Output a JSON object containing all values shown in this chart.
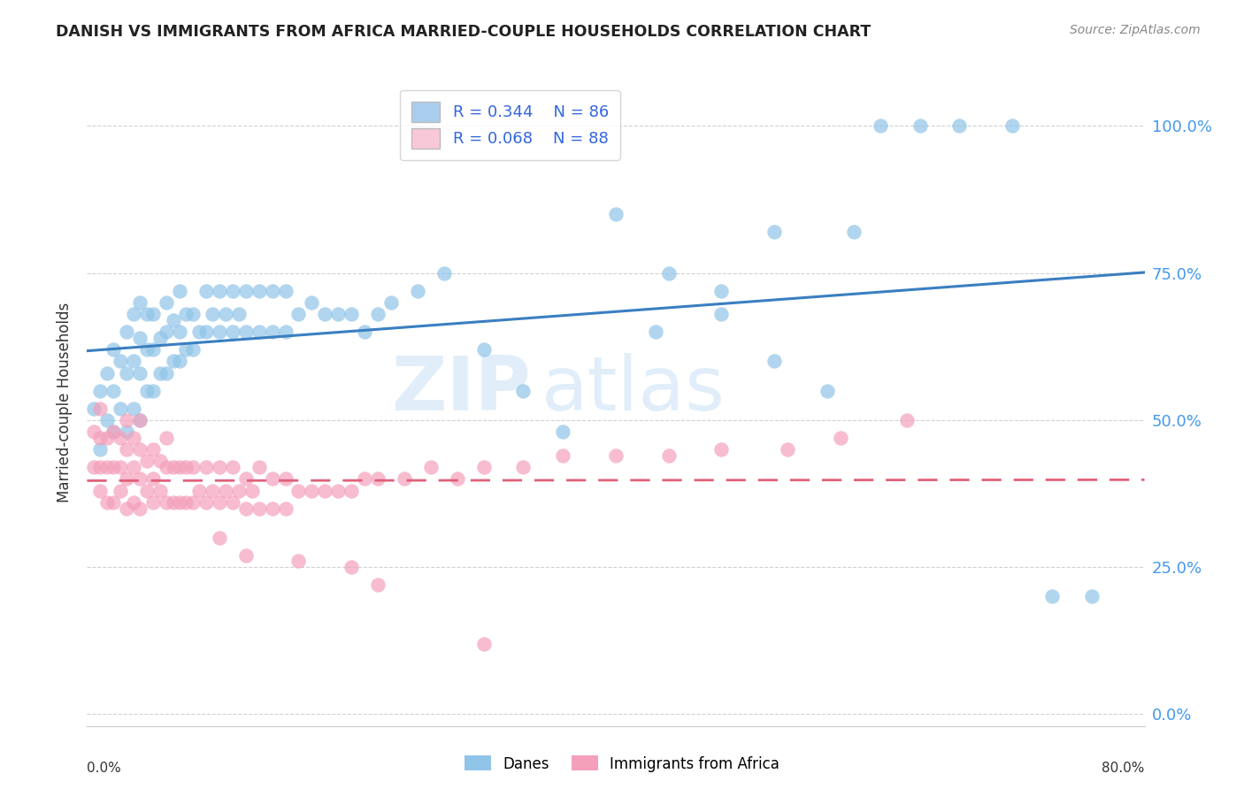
{
  "title": "DANISH VS IMMIGRANTS FROM AFRICA MARRIED-COUPLE HOUSEHOLDS CORRELATION CHART",
  "source": "Source: ZipAtlas.com",
  "ylabel": "Married-couple Households",
  "ytick_labels": [
    "0.0%",
    "25.0%",
    "50.0%",
    "75.0%",
    "100.0%"
  ],
  "ytick_values": [
    0.0,
    0.25,
    0.5,
    0.75,
    1.0
  ],
  "xmin": 0.0,
  "xmax": 0.8,
  "ymin": -0.02,
  "ymax": 1.08,
  "danes_R": 0.344,
  "danes_N": 86,
  "immigrants_R": 0.068,
  "immigrants_N": 88,
  "danes_color": "#90c4e8",
  "danes_line_color": "#3a7fc1",
  "immigrants_color": "#f4a0bb",
  "immigrants_line_color": "#e0607a",
  "legend_blue_fill": "#aacfee",
  "legend_pink_fill": "#f8c8d8",
  "watermark_zip": "ZIP",
  "watermark_atlas": "atlas",
  "danes_x": [
    0.005,
    0.01,
    0.01,
    0.015,
    0.015,
    0.02,
    0.02,
    0.02,
    0.025,
    0.025,
    0.03,
    0.03,
    0.03,
    0.035,
    0.035,
    0.035,
    0.04,
    0.04,
    0.04,
    0.04,
    0.045,
    0.045,
    0.045,
    0.05,
    0.05,
    0.05,
    0.055,
    0.055,
    0.06,
    0.06,
    0.06,
    0.065,
    0.065,
    0.07,
    0.07,
    0.07,
    0.075,
    0.075,
    0.08,
    0.08,
    0.085,
    0.09,
    0.09,
    0.095,
    0.1,
    0.1,
    0.105,
    0.11,
    0.11,
    0.115,
    0.12,
    0.12,
    0.13,
    0.13,
    0.14,
    0.14,
    0.15,
    0.15,
    0.16,
    0.17,
    0.18,
    0.19,
    0.2,
    0.21,
    0.22,
    0.23,
    0.25,
    0.27,
    0.3,
    0.33,
    0.36,
    0.4,
    0.44,
    0.48,
    0.52,
    0.56,
    0.6,
    0.63,
    0.66,
    0.7,
    0.73,
    0.76,
    0.43,
    0.48,
    0.52,
    0.58
  ],
  "danes_y": [
    0.52,
    0.45,
    0.55,
    0.5,
    0.58,
    0.48,
    0.55,
    0.62,
    0.52,
    0.6,
    0.48,
    0.58,
    0.65,
    0.52,
    0.6,
    0.68,
    0.5,
    0.58,
    0.64,
    0.7,
    0.55,
    0.62,
    0.68,
    0.55,
    0.62,
    0.68,
    0.58,
    0.64,
    0.58,
    0.65,
    0.7,
    0.6,
    0.67,
    0.6,
    0.65,
    0.72,
    0.62,
    0.68,
    0.62,
    0.68,
    0.65,
    0.65,
    0.72,
    0.68,
    0.65,
    0.72,
    0.68,
    0.65,
    0.72,
    0.68,
    0.65,
    0.72,
    0.65,
    0.72,
    0.65,
    0.72,
    0.65,
    0.72,
    0.68,
    0.7,
    0.68,
    0.68,
    0.68,
    0.65,
    0.68,
    0.7,
    0.72,
    0.75,
    0.62,
    0.55,
    0.48,
    0.85,
    0.75,
    0.72,
    0.6,
    0.55,
    1.0,
    1.0,
    1.0,
    1.0,
    0.2,
    0.2,
    0.65,
    0.68,
    0.82,
    0.82
  ],
  "imm_x": [
    0.005,
    0.005,
    0.01,
    0.01,
    0.01,
    0.01,
    0.015,
    0.015,
    0.015,
    0.02,
    0.02,
    0.02,
    0.025,
    0.025,
    0.025,
    0.03,
    0.03,
    0.03,
    0.03,
    0.035,
    0.035,
    0.035,
    0.04,
    0.04,
    0.04,
    0.04,
    0.045,
    0.045,
    0.05,
    0.05,
    0.05,
    0.055,
    0.055,
    0.06,
    0.06,
    0.06,
    0.065,
    0.065,
    0.07,
    0.07,
    0.075,
    0.075,
    0.08,
    0.08,
    0.085,
    0.09,
    0.09,
    0.095,
    0.1,
    0.1,
    0.105,
    0.11,
    0.11,
    0.115,
    0.12,
    0.12,
    0.125,
    0.13,
    0.13,
    0.14,
    0.14,
    0.15,
    0.15,
    0.16,
    0.17,
    0.18,
    0.19,
    0.2,
    0.21,
    0.22,
    0.24,
    0.26,
    0.28,
    0.3,
    0.33,
    0.36,
    0.4,
    0.44,
    0.48,
    0.53,
    0.57,
    0.62,
    0.1,
    0.12,
    0.16,
    0.2,
    0.22,
    0.3
  ],
  "imm_y": [
    0.42,
    0.48,
    0.38,
    0.42,
    0.47,
    0.52,
    0.36,
    0.42,
    0.47,
    0.36,
    0.42,
    0.48,
    0.38,
    0.42,
    0.47,
    0.35,
    0.4,
    0.45,
    0.5,
    0.36,
    0.42,
    0.47,
    0.35,
    0.4,
    0.45,
    0.5,
    0.38,
    0.43,
    0.36,
    0.4,
    0.45,
    0.38,
    0.43,
    0.36,
    0.42,
    0.47,
    0.36,
    0.42,
    0.36,
    0.42,
    0.36,
    0.42,
    0.36,
    0.42,
    0.38,
    0.36,
    0.42,
    0.38,
    0.36,
    0.42,
    0.38,
    0.36,
    0.42,
    0.38,
    0.35,
    0.4,
    0.38,
    0.35,
    0.42,
    0.35,
    0.4,
    0.35,
    0.4,
    0.38,
    0.38,
    0.38,
    0.38,
    0.38,
    0.4,
    0.4,
    0.4,
    0.42,
    0.4,
    0.42,
    0.42,
    0.44,
    0.44,
    0.44,
    0.45,
    0.45,
    0.47,
    0.5,
    0.3,
    0.27,
    0.26,
    0.25,
    0.22,
    0.12
  ]
}
